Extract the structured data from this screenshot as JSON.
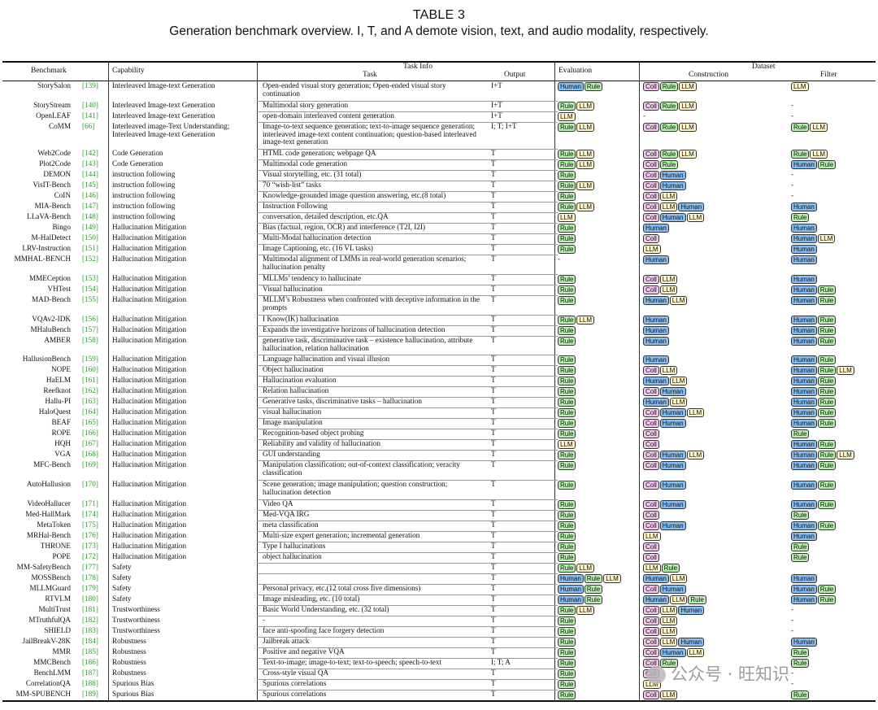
{
  "caption": {
    "label": "TABLE 3",
    "text": "Generation benchmark overview. I, T, and A demote vision, text, and audio modality, respectively."
  },
  "headers": {
    "benchmark": "Benchmark",
    "capability": "Capability",
    "task_info": "Task Info",
    "task": "Task",
    "output": "Output",
    "evaluation": "Evaluation",
    "dataset": "Dataset",
    "construction": "Construction",
    "filter": "Filter"
  },
  "tag_colors": {
    "Human": "#87bdf0",
    "Rule": "#b8f0b0",
    "LLM": "#fff5c8",
    "Coll": "#f4c8ee"
  },
  "rows": [
    {
      "benchmark": "StorySalon",
      "ref": "[139]",
      "capability": "Interleaved Image-text Generation",
      "task": "Open-ended visual story generation; Open-ended visual story continuation",
      "output": "I+T",
      "evaluation": [
        "Human",
        "Rule"
      ],
      "construction": [
        "Coll",
        "Rule",
        "LLM"
      ],
      "filter": [
        "LLM"
      ]
    },
    {
      "benchmark": "StoryStream",
      "ref": "[140]",
      "capability": "Interleaved Image-text Generation",
      "task": "Multimodal story generation",
      "output": "I+T",
      "evaluation": [
        "Rule",
        "LLM"
      ],
      "construction": [
        "Coll",
        "Rule",
        "LLM"
      ],
      "filter": "-"
    },
    {
      "benchmark": "OpenLEAF",
      "ref": "[141]",
      "capability": "Interleaved Image-text Generation",
      "task": "open-domain interleaved content generation",
      "output": "I+T",
      "evaluation": [
        "LLM"
      ],
      "construction": "-",
      "filter": "-"
    },
    {
      "benchmark": "CoMM",
      "ref": "[66]",
      "capability": "Interleaved image-Text Understanding; Interleaved Image-text Generation",
      "task": "Image-to-text sequence generation; text-to-image sequence generation; interleaved image-text content continuation; question-based interleaved image-text generation",
      "output": "I; T; I+T",
      "evaluation": [
        "Rule",
        "LLM"
      ],
      "construction": [
        "Coll",
        "Rule",
        "LLM"
      ],
      "filter": [
        "Rule",
        "LLM"
      ]
    },
    {
      "benchmark": "Web2Code",
      "ref": "[142]",
      "capability": "Code Generation",
      "task": "HTML code generation; webpage QA",
      "output": "T",
      "evaluation": [
        "Rule",
        "LLM"
      ],
      "construction": [
        "Coll",
        "Rule",
        "LLM"
      ],
      "filter": [
        "Rule",
        "LLM"
      ]
    },
    {
      "benchmark": "Plot2Code",
      "ref": "[143]",
      "capability": "Code Generation",
      "task": "Multimodal code generation",
      "output": "T",
      "evaluation": [
        "Rule",
        "LLM"
      ],
      "construction": [
        "Coll",
        "Rule"
      ],
      "filter": [
        "Human",
        "Rule"
      ]
    },
    {
      "benchmark": "DEMON",
      "ref": "[144]",
      "capability": "instruction following",
      "task": "Visual storytelling, etc. (31 total)",
      "output": "T",
      "evaluation": [
        "Rule"
      ],
      "construction": [
        "Coll",
        "Human"
      ],
      "filter": "-"
    },
    {
      "benchmark": "VisIT-Bench",
      "ref": "[145]",
      "capability": "instruction following",
      "task": "70 “wish-list” tasks",
      "output": "T",
      "evaluation": [
        "Rule",
        "LLM"
      ],
      "construction": [
        "Coll",
        "Human"
      ],
      "filter": "-"
    },
    {
      "benchmark": "CoIN",
      "ref": "[146]",
      "capability": "instruction following",
      "task": "Knowledge-grounded image question answering, etc.(8 total)",
      "output": "T",
      "evaluation": [
        "Rule"
      ],
      "construction": [
        "Coll",
        "LLM"
      ],
      "filter": "-"
    },
    {
      "benchmark": "MIA-Bench",
      "ref": "[147]",
      "capability": "instruction following",
      "task": "Instruction Following",
      "output": "T",
      "evaluation": [
        "Rule",
        "LLM"
      ],
      "construction": [
        "Coll",
        "LLM",
        "Human"
      ],
      "filter": [
        "Human"
      ]
    },
    {
      "benchmark": "LLaVA-Bench",
      "ref": "[148]",
      "capability": "instruction following",
      "task": "conversation, detailed description, etc.QA",
      "output": "T",
      "evaluation": [
        "LLM"
      ],
      "construction": [
        "Coll",
        "Human",
        "LLM"
      ],
      "filter": [
        "Rule"
      ]
    },
    {
      "benchmark": "Bingo",
      "ref": "[149]",
      "capability": "Hallucination Mitigation",
      "task": "Bias (factual, region, OCR) and interference (T2I, I2I)",
      "output": "T",
      "evaluation": [
        "Rule"
      ],
      "construction": [
        "Human"
      ],
      "filter": [
        "Human"
      ]
    },
    {
      "benchmark": "M-HalDetect",
      "ref": "[150]",
      "capability": "Hallucination Mitigation",
      "task": "Multi-Modal hallucination detection",
      "output": "T",
      "evaluation": [
        "Rule"
      ],
      "construction": [
        "Coll"
      ],
      "filter": [
        "Human",
        "LLM"
      ]
    },
    {
      "benchmark": "LRV-Instruction",
      "ref": "[151]",
      "capability": "Hallucination Mitigation",
      "task": "Image Captioning, etc. (16 VL tasks)",
      "output": "T",
      "evaluation": [
        "Rule"
      ],
      "construction": [
        "LLM"
      ],
      "filter": [
        "Human"
      ]
    },
    {
      "benchmark": "MMHAL-BENCH",
      "ref": "[152]",
      "capability": "Hallucination Mitigation",
      "task": "Multimodal alignment of LMMs in real-world generation scenarios; hallucination penalty",
      "output": "T",
      "evaluation": "-",
      "construction": [
        "Human"
      ],
      "filter": [
        "Human"
      ]
    },
    {
      "benchmark": "MMECeption",
      "ref": "[153]",
      "capability": "Hallucination Mitigation",
      "task": "MLLMs’ tendency to hallucinate",
      "output": "T",
      "evaluation": [
        "Rule"
      ],
      "construction": [
        "Coll",
        "LLM"
      ],
      "filter": [
        "Human"
      ]
    },
    {
      "benchmark": "VHTest",
      "ref": "[154]",
      "capability": "Hallucination Mitigation",
      "task": "Visual hallucination",
      "output": "T",
      "evaluation": [
        "Rule"
      ],
      "construction": [
        "Coll",
        "LLM"
      ],
      "filter": [
        "Human",
        "Rule"
      ]
    },
    {
      "benchmark": "MAD-Bench",
      "ref": "[155]",
      "capability": "Hallucination Mitigation",
      "task": "MLLM’s Robustness when confronted with deceptive information in the prompts",
      "output": "T",
      "evaluation": [
        "Rule"
      ],
      "construction": [
        "Human",
        "LLM"
      ],
      "filter": [
        "Human",
        "Rule"
      ]
    },
    {
      "benchmark": "VQAv2-IDK",
      "ref": "[156]",
      "capability": "Hallucination Mitigation",
      "task": "I Know(IK) hallucination",
      "output": "T",
      "evaluation": [
        "Rule",
        "LLM"
      ],
      "construction": [
        "Human"
      ],
      "filter": [
        "Human",
        "Rule"
      ]
    },
    {
      "benchmark": "MHaluBench",
      "ref": "[157]",
      "capability": "Hallucination Mitigation",
      "task": "Expands the investigative horizons of hallucination detection",
      "output": "T",
      "evaluation": [
        "Rule"
      ],
      "construction": [
        "Human"
      ],
      "filter": [
        "Human",
        "Rule"
      ]
    },
    {
      "benchmark": "AMBER",
      "ref": "[158]",
      "capability": "Hallucination Mitigation",
      "task": "generative task, discriminative task – existence hallucination, attribute hallucination, relation hallucination",
      "output": "T",
      "evaluation": [
        "Rule"
      ],
      "construction": [
        "Human"
      ],
      "filter": [
        "Human",
        "Rule"
      ]
    },
    {
      "benchmark": "HallusionBench",
      "ref": "[159]",
      "capability": "Hallucination Mitigation",
      "task": "Language hallucination and visual illusion",
      "output": "T",
      "evaluation": [
        "Rule"
      ],
      "construction": [
        "Human"
      ],
      "filter": [
        "Human",
        "Rule"
      ]
    },
    {
      "benchmark": "NOPE",
      "ref": "[160]",
      "capability": "Hallucination Mitigation",
      "task": "Object hallucination",
      "output": "T",
      "evaluation": [
        "Rule"
      ],
      "construction": [
        "Coll",
        "LLM"
      ],
      "filter": [
        "Human",
        "Rule",
        "LLM"
      ]
    },
    {
      "benchmark": "HaELM",
      "ref": "[161]",
      "capability": "Hallucination Mitigation",
      "task": "Hallucination evaluation",
      "output": "T",
      "evaluation": [
        "Rule"
      ],
      "construction": [
        "Human",
        "LLM"
      ],
      "filter": [
        "Human",
        "Rule"
      ]
    },
    {
      "benchmark": "Reefknot",
      "ref": "[162]",
      "capability": "Hallucination Mitigation",
      "task": "Relation hallucination",
      "output": "T",
      "evaluation": [
        "Rule"
      ],
      "construction": [
        "Coll",
        "Human"
      ],
      "filter": [
        "Human",
        "Rule"
      ]
    },
    {
      "benchmark": "Hallu-PI",
      "ref": "[163]",
      "capability": "Hallucination Mitigation",
      "task": "Generative tasks, discriminative tasks – hallucination",
      "output": "T",
      "evaluation": [
        "Rule"
      ],
      "construction": [
        "Human",
        "LLM"
      ],
      "filter": [
        "Human",
        "Rule"
      ]
    },
    {
      "benchmark": "HaloQuest",
      "ref": "[164]",
      "capability": "Hallucination Mitigation",
      "task": "visual hallucination",
      "output": "T",
      "evaluation": [
        "Rule"
      ],
      "construction": [
        "Coll",
        "Human",
        "LLM"
      ],
      "filter": [
        "Human",
        "Rule"
      ]
    },
    {
      "benchmark": "BEAF",
      "ref": "[165]",
      "capability": "Hallucination Mitigation",
      "task": "Image manipulation",
      "output": "T",
      "evaluation": [
        "Rule"
      ],
      "construction": [
        "Coll",
        "Human"
      ],
      "filter": [
        "Human",
        "Rule"
      ]
    },
    {
      "benchmark": "ROPE",
      "ref": "[166]",
      "capability": "Hallucination Mitigation",
      "task": "Recognition-based object probing",
      "output": "T",
      "evaluation": [
        "Rule"
      ],
      "construction": [
        "Coll"
      ],
      "filter": [
        "Rule"
      ]
    },
    {
      "benchmark": "HQH",
      "ref": "[167]",
      "capability": "Hallucination Mitigation",
      "task": "Reliability and validity of hallucination",
      "output": "T",
      "evaluation": [
        "LLM"
      ],
      "construction": [
        "Coll"
      ],
      "filter": [
        "Human",
        "Rule"
      ]
    },
    {
      "benchmark": "VGA",
      "ref": "[168]",
      "capability": "Hallucination Mitigation",
      "task": "GUI understanding",
      "output": "T",
      "evaluation": [
        "Rule"
      ],
      "construction": [
        "Coll",
        "Human",
        "LLM"
      ],
      "filter": [
        "Human",
        "Rule",
        "LLM"
      ]
    },
    {
      "benchmark": "MFC-Bench",
      "ref": "[169]",
      "capability": "Hallucination Mitigation",
      "task": "Manipulation classification; out-of-context classification; veracity classification",
      "output": "T",
      "evaluation": [
        "Rule"
      ],
      "construction": [
        "Coll",
        "Human"
      ],
      "filter": [
        "Human",
        "Rule"
      ]
    },
    {
      "benchmark": "AutoHallusion",
      "ref": "[170]",
      "capability": "Hallucination Mitigation",
      "task": "Scene generation; image manipulation; question construction; hallucination detection",
      "output": "T",
      "evaluation": [
        "Rule"
      ],
      "construction": [
        "Coll",
        "Human"
      ],
      "filter": [
        "Human",
        "Rule"
      ]
    },
    {
      "benchmark": "VideoHallucer",
      "ref": "[171]",
      "capability": "Hallucination Mitigation",
      "task": "Video QA",
      "output": "T",
      "evaluation": [
        "Rule"
      ],
      "construction": [
        "Coll",
        "Human"
      ],
      "filter": [
        "Human",
        "Rule"
      ]
    },
    {
      "benchmark": "Med-HallMark",
      "ref": "[174]",
      "capability": "Hallucination Mitigation",
      "task": "Med-VQA IRG",
      "output": "T",
      "evaluation": [
        "Rule"
      ],
      "construction": [
        "Coll"
      ],
      "filter": [
        "Rule"
      ]
    },
    {
      "benchmark": "MetaToken",
      "ref": "[175]",
      "capability": "Hallucination Mitigation",
      "task": "meta classification",
      "output": "T",
      "evaluation": [
        "Rule"
      ],
      "construction": [
        "Coll",
        "Human"
      ],
      "filter": [
        "Human",
        "Rule"
      ]
    },
    {
      "benchmark": "MRHal-Bench",
      "ref": "[176]",
      "capability": "Hallucination Mitigation",
      "task": "Multi-size expert generation; incremental generation",
      "output": "T",
      "evaluation": [
        "Rule"
      ],
      "construction": [
        "LLM"
      ],
      "filter": [
        "Human"
      ]
    },
    {
      "benchmark": "THRONE",
      "ref": "[173]",
      "capability": "Hallucination Mitigation",
      "task": "Type I hallucinations",
      "output": "T",
      "evaluation": [
        "Rule"
      ],
      "construction": [
        "Coll"
      ],
      "filter": [
        "Rule"
      ]
    },
    {
      "benchmark": "POPE",
      "ref": "[172]",
      "capability": "Hallucination Mitigation",
      "task": "object hallucination",
      "output": "T",
      "evaluation": [
        "Rule"
      ],
      "construction": [
        "Coll"
      ],
      "filter": [
        "Rule"
      ]
    },
    {
      "benchmark": "MM-SafetyBench",
      "ref": "[177]",
      "capability": "Safety",
      "task": "",
      "output": "T",
      "evaluation": [
        "Rule",
        "LLM"
      ],
      "construction": [
        "LLM",
        "Rule"
      ],
      "filter": ""
    },
    {
      "benchmark": "MOSSBench",
      "ref": "[178]",
      "capability": "Safety",
      "task": "",
      "output": "T",
      "evaluation": [
        "Human",
        "Rule",
        "LLM"
      ],
      "construction": [
        "Human",
        "LLM"
      ],
      "filter": [
        "Human"
      ]
    },
    {
      "benchmark": "MLLMGuard",
      "ref": "[179]",
      "capability": "Safety",
      "task": "Personal privacy, etc.(12 total cross five dimensions)",
      "output": "T",
      "evaluation": [
        "Human",
        "Rule"
      ],
      "construction": [
        "Coll",
        "Human"
      ],
      "filter": [
        "Human",
        "Rule"
      ]
    },
    {
      "benchmark": "RTVLM",
      "ref": "[180]",
      "capability": "Safety",
      "task": "Image misleading, etc. (10 total)",
      "output": "T",
      "evaluation": [
        "Human",
        "Rule"
      ],
      "construction": [
        "Human",
        "LLM",
        "Rule"
      ],
      "filter": [
        "Human",
        "Rule"
      ]
    },
    {
      "benchmark": "MultiTrust",
      "ref": "[181]",
      "capability": "Trustworthiness",
      "task": "Basic World Understanding, etc. (32 total)",
      "output": "T",
      "evaluation": [
        "Rule",
        "LLM"
      ],
      "construction": [
        "Coll",
        "LLM",
        "Human"
      ],
      "filter": "-"
    },
    {
      "benchmark": "MTruthfulQA",
      "ref": "[182]",
      "capability": "Trustworthiness",
      "task": "-",
      "output": "T",
      "evaluation": [
        "Rule"
      ],
      "construction": [
        "Coll",
        "LLM"
      ],
      "filter": "-"
    },
    {
      "benchmark": "SHIELD",
      "ref": "[183]",
      "capability": "Trustworthiness",
      "task": "face anti-spoofing face forgery detection",
      "output": "T",
      "evaluation": [
        "Rule"
      ],
      "construction": [
        "Coll",
        "LLM"
      ],
      "filter": "-"
    },
    {
      "benchmark": "JailBreakV-28K",
      "ref": "[184]",
      "capability": "Robustness",
      "task": "Jailbreak attack",
      "output": "T",
      "evaluation": [
        "Rule"
      ],
      "construction": [
        "Coll",
        "LLM",
        "Human"
      ],
      "filter": [
        "Human"
      ]
    },
    {
      "benchmark": "MMR",
      "ref": "[185]",
      "capability": "Robustness",
      "task": "Positive and negative VQA",
      "output": "T",
      "evaluation": [
        "Rule"
      ],
      "construction": [
        "Coll",
        "Human",
        "LLM"
      ],
      "filter": [
        "Rule"
      ]
    },
    {
      "benchmark": "MMCBench",
      "ref": "[186]",
      "capability": "Robustness",
      "task": "Text-to-image; image-to-text; text-to-speech; speech-to-text",
      "output": "I; T; A",
      "evaluation": [
        "Rule"
      ],
      "construction": [
        "Coll",
        "Rule"
      ],
      "filter": [
        "Rule"
      ]
    },
    {
      "benchmark": "BenchLMM",
      "ref": "[187]",
      "capability": "Robustness",
      "task": "Cross-style visual QA",
      "output": "T",
      "evaluation": [
        "Rule"
      ],
      "construction": [
        "Coll"
      ],
      "filter": "-"
    },
    {
      "benchmark": "CorrelationQA",
      "ref": "[188]",
      "capability": "Spurious Bias",
      "task": "Spurious correlations",
      "output": "T",
      "evaluation": [
        "Rule"
      ],
      "construction": [
        "LLM"
      ],
      "filter": "-"
    },
    {
      "benchmark": "MM-SPUBENCH",
      "ref": "[189]",
      "capability": "Spurious Bias",
      "task": "Spurious correlations",
      "output": "T",
      "evaluation": [
        "Rule"
      ],
      "construction": [
        "Coll",
        "LLM"
      ],
      "filter": [
        "Rule"
      ]
    }
  ],
  "watermark": "公众号 · 旺知识"
}
